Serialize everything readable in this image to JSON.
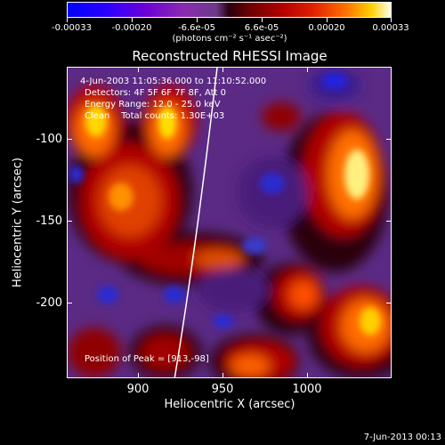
{
  "colorbar": {
    "tick_labels": [
      "-0.00033",
      "-0.00020",
      "-6.6e-05",
      "6.6e-05",
      "0.00020",
      "0.00033"
    ],
    "units": "(photons cm⁻² s⁻¹ asec⁻²)"
  },
  "title": "Reconstructed RHESSI Image",
  "info": {
    "time_range": "4-Jun-2003 11:05:36.000 to 11:10:52.000",
    "detectors": "Detectors: 4F 5F 6F 7F 8F, Att 0",
    "energy": "Energy Range: 12.0 - 25.0 keV",
    "clean": "Clean    Total counts: 1.30E+03",
    "peak": "Position of Peak = [913,-98]"
  },
  "x_axis": {
    "label": "Heliocentric X (arcsec)",
    "ticks": [
      "900",
      "950",
      "1000"
    ]
  },
  "y_axis": {
    "label": "Heliocentric Y (arcsec)",
    "ticks": [
      "-100",
      "-150",
      "-200"
    ]
  },
  "timestamp": "7-Jun-2013 00:13",
  "colors": {
    "limb": "#ffffff",
    "background": "#000000"
  }
}
